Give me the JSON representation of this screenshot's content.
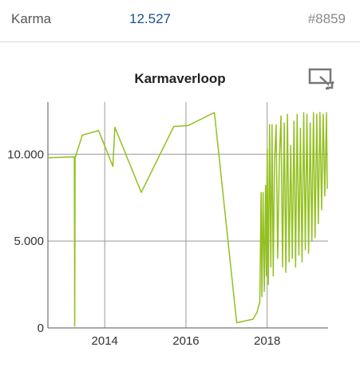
{
  "karma": {
    "label": "Karma",
    "value": "12.527",
    "rank": "#8859"
  },
  "chart": {
    "title": "Karmaverloop",
    "expand_icon": "expand-icon"
  },
  "colors": {
    "line": "#93c01f",
    "value": "#1f4f8a",
    "grid": "#999999"
  },
  "chart_data": {
    "type": "line",
    "title": "Karmaverloop",
    "xlabel": "",
    "ylabel": "",
    "xlim": [
      2012.6,
      2019.5
    ],
    "ylim": [
      0,
      13000
    ],
    "grid": true,
    "legend": "none",
    "x_ticks": [
      2014,
      2016,
      2018
    ],
    "x_tick_labels": [
      "2014",
      "2016",
      "2018"
    ],
    "y_ticks": [
      0,
      5000,
      10000
    ],
    "y_tick_labels": [
      "0",
      "5.000",
      "10.000"
    ],
    "series": [
      {
        "points": [
          [
            2012.6,
            9800
          ],
          [
            2013.25,
            9850
          ],
          [
            2013.26,
            100
          ],
          [
            2013.27,
            9800
          ],
          [
            2013.45,
            11100
          ],
          [
            2013.6,
            11200
          ],
          [
            2013.75,
            11300
          ],
          [
            2013.85,
            11350
          ],
          [
            2014.2,
            9300
          ],
          [
            2014.25,
            11550
          ],
          [
            2014.9,
            7800
          ],
          [
            2015.7,
            11600
          ],
          [
            2016.05,
            11650
          ],
          [
            2016.7,
            12400
          ],
          [
            2017.25,
            300
          ],
          [
            2017.65,
            500
          ],
          [
            2017.75,
            900
          ],
          [
            2017.82,
            1500
          ],
          [
            2017.85,
            7800
          ],
          [
            2017.87,
            1800
          ],
          [
            2017.9,
            7800
          ],
          [
            2017.93,
            2100
          ],
          [
            2017.96,
            8200
          ],
          [
            2017.98,
            3000
          ],
          [
            2018.0,
            10300
          ],
          [
            2018.03,
            2500
          ],
          [
            2018.06,
            11700
          ],
          [
            2018.09,
            3500
          ],
          [
            2018.12,
            11700
          ],
          [
            2018.15,
            3000
          ],
          [
            2018.18,
            9500
          ],
          [
            2018.22,
            11700
          ],
          [
            2018.26,
            4000
          ],
          [
            2018.3,
            9700
          ],
          [
            2018.34,
            12200
          ],
          [
            2018.38,
            3500
          ],
          [
            2018.42,
            11800
          ],
          [
            2018.46,
            3200
          ],
          [
            2018.5,
            12300
          ],
          [
            2018.54,
            3800
          ],
          [
            2018.58,
            10500
          ],
          [
            2018.62,
            4000
          ],
          [
            2018.66,
            11900
          ],
          [
            2018.7,
            3500
          ],
          [
            2018.74,
            12300
          ],
          [
            2018.78,
            4200
          ],
          [
            2018.82,
            11500
          ],
          [
            2018.86,
            3800
          ],
          [
            2018.9,
            12400
          ],
          [
            2018.94,
            4500
          ],
          [
            2018.98,
            12300
          ],
          [
            2019.02,
            4300
          ],
          [
            2019.06,
            11800
          ],
          [
            2019.1,
            5000
          ],
          [
            2019.14,
            12400
          ],
          [
            2019.18,
            5200
          ],
          [
            2019.22,
            12300
          ],
          [
            2019.26,
            6000
          ],
          [
            2019.3,
            12400
          ],
          [
            2019.34,
            6800
          ],
          [
            2019.38,
            12300
          ],
          [
            2019.42,
            7600
          ],
          [
            2019.46,
            12400
          ],
          [
            2019.48,
            8000
          ]
        ]
      }
    ]
  }
}
